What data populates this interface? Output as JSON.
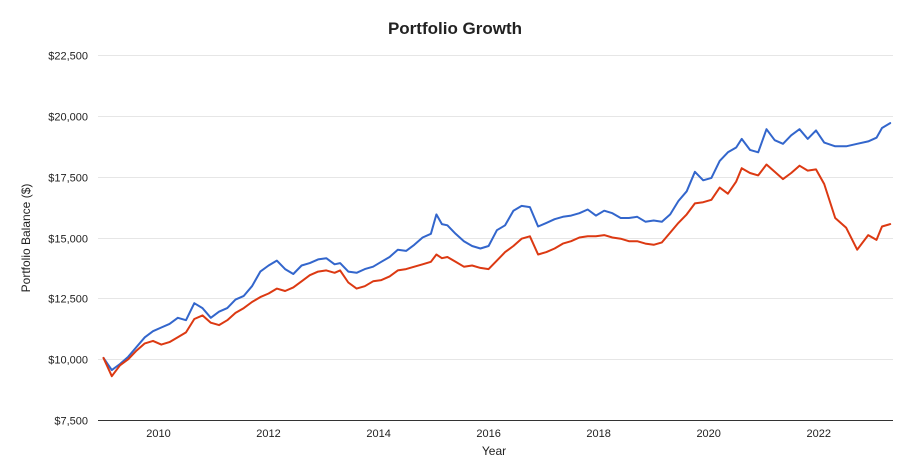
{
  "chart_data": {
    "type": "line",
    "title": "Portfolio Growth",
    "xlabel": "Year",
    "ylabel": "Portfolio Balance ($)",
    "xlim": [
      2008.9,
      2023.35
    ],
    "ylim": [
      7500,
      22500
    ],
    "grid": true,
    "xticks": [
      2010,
      2012,
      2014,
      2016,
      2018,
      2020,
      2022
    ],
    "xtick_labels": [
      "2010",
      "2012",
      "2014",
      "2016",
      "2018",
      "2020",
      "2022"
    ],
    "yticks": [
      7500,
      10000,
      12500,
      15000,
      17500,
      20000,
      22500
    ],
    "ytick_labels": [
      "$7,500",
      "$10,000",
      "$12,500",
      "$15,000",
      "$17,500",
      "$20,000",
      "$22,500"
    ],
    "series": [
      {
        "color": "#3366cc",
        "x": [
          2009.0,
          2009.15,
          2009.3,
          2009.45,
          2009.6,
          2009.75,
          2009.9,
          2010.05,
          2010.2,
          2010.35,
          2010.5,
          2010.65,
          2010.8,
          2010.95,
          2011.1,
          2011.25,
          2011.4,
          2011.55,
          2011.7,
          2011.85,
          2012.0,
          2012.15,
          2012.3,
          2012.45,
          2012.6,
          2012.75,
          2012.9,
          2013.05,
          2013.2,
          2013.3,
          2013.45,
          2013.6,
          2013.75,
          2013.9,
          2014.05,
          2014.2,
          2014.35,
          2014.5,
          2014.65,
          2014.8,
          2014.95,
          2015.05,
          2015.15,
          2015.25,
          2015.4,
          2015.55,
          2015.7,
          2015.85,
          2016.0,
          2016.15,
          2016.3,
          2016.45,
          2016.6,
          2016.75,
          2016.9,
          2017.05,
          2017.2,
          2017.35,
          2017.5,
          2017.65,
          2017.8,
          2017.95,
          2018.1,
          2018.25,
          2018.4,
          2018.55,
          2018.7,
          2018.85,
          2019.0,
          2019.15,
          2019.3,
          2019.45,
          2019.6,
          2019.75,
          2019.9,
          2020.05,
          2020.2,
          2020.35,
          2020.5,
          2020.6,
          2020.75,
          2020.9,
          2021.05,
          2021.2,
          2021.35,
          2021.5,
          2021.65,
          2021.8,
          2021.95,
          2022.1,
          2022.3,
          2022.5,
          2022.7,
          2022.9,
          2023.05,
          2023.15,
          2023.3
        ],
        "values": [
          10050,
          9550,
          9800,
          10100,
          10500,
          10900,
          11150,
          11300,
          11450,
          11700,
          11600,
          12300,
          12100,
          11700,
          11950,
          12100,
          12450,
          12600,
          13000,
          13600,
          13850,
          14050,
          13700,
          13500,
          13850,
          13950,
          14100,
          14150,
          13900,
          13950,
          13600,
          13550,
          13700,
          13800,
          14000,
          14200,
          14500,
          14450,
          14700,
          15000,
          15150,
          15950,
          15550,
          15500,
          15150,
          14850,
          14650,
          14550,
          14650,
          15300,
          15500,
          16100,
          16300,
          16250,
          15450,
          15600,
          15750,
          15850,
          15900,
          16000,
          16150,
          15900,
          16100,
          16000,
          15800,
          15800,
          15850,
          15650,
          15700,
          15650,
          15950,
          16500,
          16900,
          17700,
          17350,
          17450,
          18150,
          18500,
          18700,
          19050,
          18600,
          18500,
          19450,
          19000,
          18850,
          19200,
          19450,
          19050,
          19400,
          18900,
          18750,
          18750,
          18850,
          18950,
          19100,
          19500,
          19700
        ]
      },
      {
        "color": "#dc3912",
        "x": [
          2009.0,
          2009.15,
          2009.3,
          2009.45,
          2009.6,
          2009.75,
          2009.9,
          2010.05,
          2010.2,
          2010.35,
          2010.5,
          2010.65,
          2010.8,
          2010.95,
          2011.1,
          2011.25,
          2011.4,
          2011.55,
          2011.7,
          2011.85,
          2012.0,
          2012.15,
          2012.3,
          2012.45,
          2012.6,
          2012.75,
          2012.9,
          2013.05,
          2013.2,
          2013.3,
          2013.45,
          2013.6,
          2013.75,
          2013.9,
          2014.05,
          2014.2,
          2014.35,
          2014.5,
          2014.65,
          2014.8,
          2014.95,
          2015.05,
          2015.15,
          2015.25,
          2015.4,
          2015.55,
          2015.7,
          2015.85,
          2016.0,
          2016.15,
          2016.3,
          2016.45,
          2016.6,
          2016.75,
          2016.9,
          2017.05,
          2017.2,
          2017.35,
          2017.5,
          2017.65,
          2017.8,
          2017.95,
          2018.1,
          2018.25,
          2018.4,
          2018.55,
          2018.7,
          2018.85,
          2019.0,
          2019.15,
          2019.3,
          2019.45,
          2019.6,
          2019.75,
          2019.9,
          2020.05,
          2020.2,
          2020.35,
          2020.5,
          2020.6,
          2020.75,
          2020.9,
          2021.05,
          2021.2,
          2021.35,
          2021.5,
          2021.65,
          2021.8,
          2021.95,
          2022.1,
          2022.3,
          2022.5,
          2022.7,
          2022.9,
          2023.05,
          2023.15,
          2023.3
        ],
        "values": [
          10050,
          9300,
          9750,
          10000,
          10350,
          10650,
          10750,
          10600,
          10700,
          10900,
          11100,
          11650,
          11800,
          11500,
          11400,
          11600,
          11900,
          12100,
          12350,
          12550,
          12700,
          12900,
          12800,
          12950,
          13200,
          13450,
          13600,
          13650,
          13550,
          13650,
          13150,
          12900,
          13000,
          13200,
          13250,
          13400,
          13650,
          13700,
          13800,
          13900,
          14000,
          14300,
          14150,
          14200,
          14000,
          13800,
          13850,
          13750,
          13700,
          14050,
          14400,
          14650,
          14950,
          15050,
          14300,
          14400,
          14550,
          14750,
          14850,
          15000,
          15050,
          15050,
          15100,
          15000,
          14950,
          14850,
          14850,
          14750,
          14700,
          14800,
          15200,
          15600,
          15950,
          16400,
          16450,
          16550,
          17050,
          16800,
          17300,
          17850,
          17650,
          17550,
          18000,
          17700,
          17400,
          17650,
          17950,
          17750,
          17800,
          17200,
          15800,
          15400,
          14500,
          15100,
          14900,
          15450,
          15550
        ]
      }
    ]
  }
}
